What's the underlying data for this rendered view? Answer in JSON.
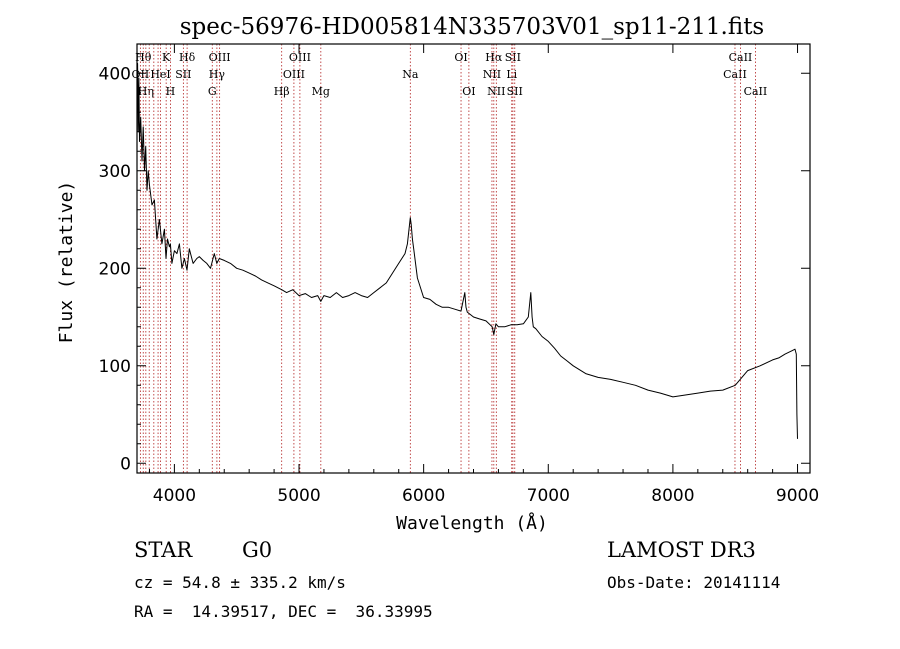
{
  "chart_data": {
    "type": "line",
    "title": "spec-56976-HD005814N335703V01_sp11-211.fits",
    "xlabel": "Wavelength (Å)",
    "ylabel": "Flux (relative)",
    "xlim": [
      3700,
      9100
    ],
    "ylim": [
      -10,
      430
    ],
    "xticks": [
      4000,
      5000,
      6000,
      7000,
      8000,
      9000
    ],
    "yticks": [
      0,
      100,
      200,
      300,
      400
    ],
    "series": [
      {
        "name": "flux",
        "x": [
          3700,
          3705,
          3710,
          3715,
          3720,
          3730,
          3740,
          3750,
          3760,
          3770,
          3780,
          3790,
          3800,
          3820,
          3840,
          3860,
          3880,
          3900,
          3920,
          3933,
          3945,
          3960,
          3968,
          3980,
          4000,
          4020,
          4040,
          4060,
          4080,
          4101,
          4120,
          4150,
          4180,
          4200,
          4230,
          4260,
          4290,
          4320,
          4340,
          4360,
          4400,
          4450,
          4500,
          4550,
          4600,
          4650,
          4700,
          4750,
          4800,
          4861,
          4900,
          4950,
          5000,
          5050,
          5100,
          5150,
          5175,
          5200,
          5250,
          5300,
          5350,
          5400,
          5450,
          5500,
          5550,
          5600,
          5650,
          5700,
          5750,
          5800,
          5850,
          5870,
          5893,
          5900,
          5910,
          5920,
          5950,
          6000,
          6050,
          6100,
          6150,
          6200,
          6250,
          6300,
          6330,
          6340,
          6350,
          6400,
          6450,
          6500,
          6550,
          6563,
          6580,
          6600,
          6650,
          6700,
          6750,
          6800,
          6840,
          6860,
          6870,
          6880,
          6900,
          6950,
          7000,
          7050,
          7100,
          7150,
          7200,
          7300,
          7400,
          7500,
          7600,
          7700,
          7800,
          7900,
          8000,
          8100,
          8200,
          8300,
          8400,
          8500,
          8600,
          8700,
          8800,
          8850,
          8900,
          8950,
          8980,
          8990,
          8995,
          9000
        ],
        "values": [
          360,
          410,
          340,
          395,
          330,
          355,
          310,
          345,
          300,
          325,
          280,
          300,
          285,
          265,
          270,
          230,
          250,
          225,
          240,
          210,
          230,
          222,
          225,
          205,
          218,
          215,
          225,
          200,
          210,
          198,
          220,
          205,
          210,
          212,
          208,
          205,
          200,
          215,
          205,
          210,
          208,
          205,
          200,
          198,
          195,
          192,
          188,
          185,
          182,
          178,
          175,
          178,
          172,
          174,
          170,
          172,
          166,
          172,
          170,
          175,
          170,
          172,
          175,
          172,
          170,
          175,
          180,
          185,
          195,
          205,
          215,
          225,
          252,
          245,
          230,
          220,
          190,
          170,
          168,
          163,
          160,
          160,
          158,
          156,
          175,
          160,
          155,
          150,
          148,
          146,
          140,
          132,
          143,
          140,
          140,
          142,
          142,
          143,
          150,
          175,
          150,
          140,
          138,
          130,
          125,
          118,
          110,
          105,
          100,
          92,
          88,
          86,
          83,
          80,
          75,
          72,
          68,
          70,
          72,
          74,
          75,
          80,
          95,
          100,
          106,
          108,
          112,
          115,
          117,
          112,
          50,
          25
        ]
      }
    ],
    "lines": [
      {
        "x": 3727,
        "label": "OII",
        "row": 1
      },
      {
        "x": 3750,
        "label": "Hθ",
        "row": 0
      },
      {
        "x": 3771,
        "label": "Hη",
        "row": 2
      },
      {
        "x": 3798,
        "label": "",
        "row": 0
      },
      {
        "x": 3835,
        "label": "",
        "row": 0
      },
      {
        "x": 3869,
        "label": "",
        "row": 0
      },
      {
        "x": 3889,
        "label": "HeI",
        "row": 1
      },
      {
        "x": 3934,
        "label": "K",
        "row": 0
      },
      {
        "x": 3968,
        "label": "H",
        "row": 2
      },
      {
        "x": 4072,
        "label": "SII",
        "row": 1
      },
      {
        "x": 4102,
        "label": "Hδ",
        "row": 0
      },
      {
        "x": 4304,
        "label": "G",
        "row": 2
      },
      {
        "x": 4341,
        "label": "Hγ",
        "row": 1
      },
      {
        "x": 4363,
        "label": "OIII",
        "row": 0
      },
      {
        "x": 4861,
        "label": "Hβ",
        "row": 2
      },
      {
        "x": 4959,
        "label": "OIII",
        "row": 1
      },
      {
        "x": 5007,
        "label": "OIII",
        "row": 0
      },
      {
        "x": 5175,
        "label": "Mg",
        "row": 2
      },
      {
        "x": 5893,
        "label": "Na",
        "row": 1
      },
      {
        "x": 6300,
        "label": "OI",
        "row": 0
      },
      {
        "x": 6363,
        "label": "OI",
        "row": 2
      },
      {
        "x": 6548,
        "label": "NII",
        "row": 1
      },
      {
        "x": 6563,
        "label": "Hα",
        "row": 0
      },
      {
        "x": 6583,
        "label": "NII",
        "row": 2
      },
      {
        "x": 6707,
        "label": "Li",
        "row": 1
      },
      {
        "x": 6716,
        "label": "SII",
        "row": 0
      },
      {
        "x": 6731,
        "label": "SII",
        "row": 2
      },
      {
        "x": 8498,
        "label": "CaII",
        "row": 1
      },
      {
        "x": 8542,
        "label": "CaII",
        "row": 0
      },
      {
        "x": 8662,
        "label": "CaII",
        "row": 2
      }
    ]
  },
  "info": {
    "object_type": "STAR",
    "subclass": "G0",
    "survey": "LAMOST DR3",
    "redshift": "cz = 54.8 ± 335.2 km/s",
    "obs_date": "Obs-Date: 20141114",
    "coords": "RA =  14.39517, DEC =  36.33995"
  }
}
